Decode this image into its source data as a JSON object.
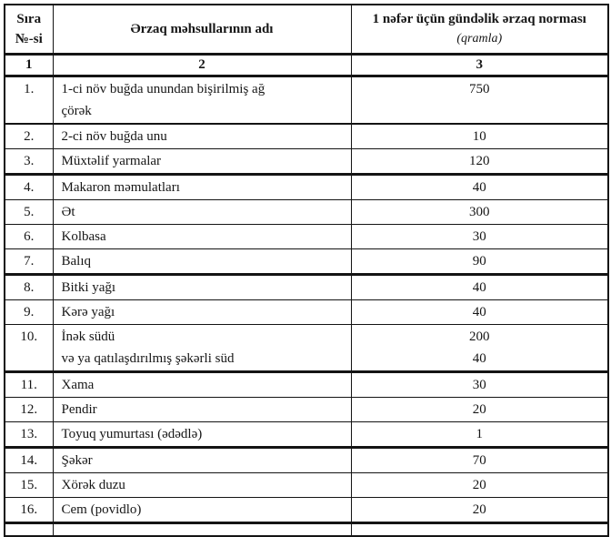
{
  "document": {
    "background": "#ffffff",
    "text_color": "#161616",
    "border_color": "#141414"
  },
  "table": {
    "header": {
      "col1_lines": [
        "Sıra",
        "№-si"
      ],
      "col2": "Ərzaq məhsullarının adı",
      "col3_title": "1 nəfər üçün gündəlik ərzaq norması",
      "col3_subtitle": "(qramla)"
    },
    "numbering_row": [
      "1",
      "2",
      "3"
    ],
    "rows": [
      {
        "no": "1.",
        "name_lines": [
          "1-ci növ buğda unundan bişirilmiş ağ",
          "çörək"
        ],
        "values": [
          "750"
        ]
      },
      {
        "no": "2.",
        "name_lines": [
          "2-ci növ buğda unu"
        ],
        "values": [
          "10"
        ]
      },
      {
        "no": "3.",
        "name_lines": [
          "Müxtəlif yarmalar"
        ],
        "values": [
          "120"
        ]
      },
      {
        "no": "4.",
        "name_lines": [
          "Makaron məmulatları"
        ],
        "values": [
          "40"
        ]
      },
      {
        "no": "5.",
        "name_lines": [
          "Ət"
        ],
        "values": [
          "300"
        ]
      },
      {
        "no": "6.",
        "name_lines": [
          "Kolbasa"
        ],
        "values": [
          "30"
        ]
      },
      {
        "no": "7.",
        "name_lines": [
          "Balıq"
        ],
        "values": [
          "90"
        ]
      },
      {
        "no": "8.",
        "name_lines": [
          "Bitki yağı"
        ],
        "values": [
          "40"
        ]
      },
      {
        "no": "9.",
        "name_lines": [
          "Kərə yağı"
        ],
        "values": [
          "40"
        ]
      },
      {
        "no": "10.",
        "name_lines": [
          "İnək südü",
          "və ya qatılaşdırılmış şəkərli süd"
        ],
        "values": [
          "200",
          "40"
        ]
      },
      {
        "no": "11.",
        "name_lines": [
          "Xama"
        ],
        "values": [
          "30"
        ]
      },
      {
        "no": "12.",
        "name_lines": [
          "Pendir"
        ],
        "values": [
          "20"
        ]
      },
      {
        "no": "13.",
        "name_lines": [
          "Toyuq yumurtası (ədədlə)"
        ],
        "values": [
          "1"
        ]
      },
      {
        "no": "14.",
        "name_lines": [
          "Şəkər"
        ],
        "values": [
          "70"
        ]
      },
      {
        "no": "15.",
        "name_lines": [
          "Xörək duzu"
        ],
        "values": [
          "20"
        ]
      },
      {
        "no": "16.",
        "name_lines": [
          "Cem (povidlo)"
        ],
        "values": [
          "20"
        ]
      }
    ]
  }
}
